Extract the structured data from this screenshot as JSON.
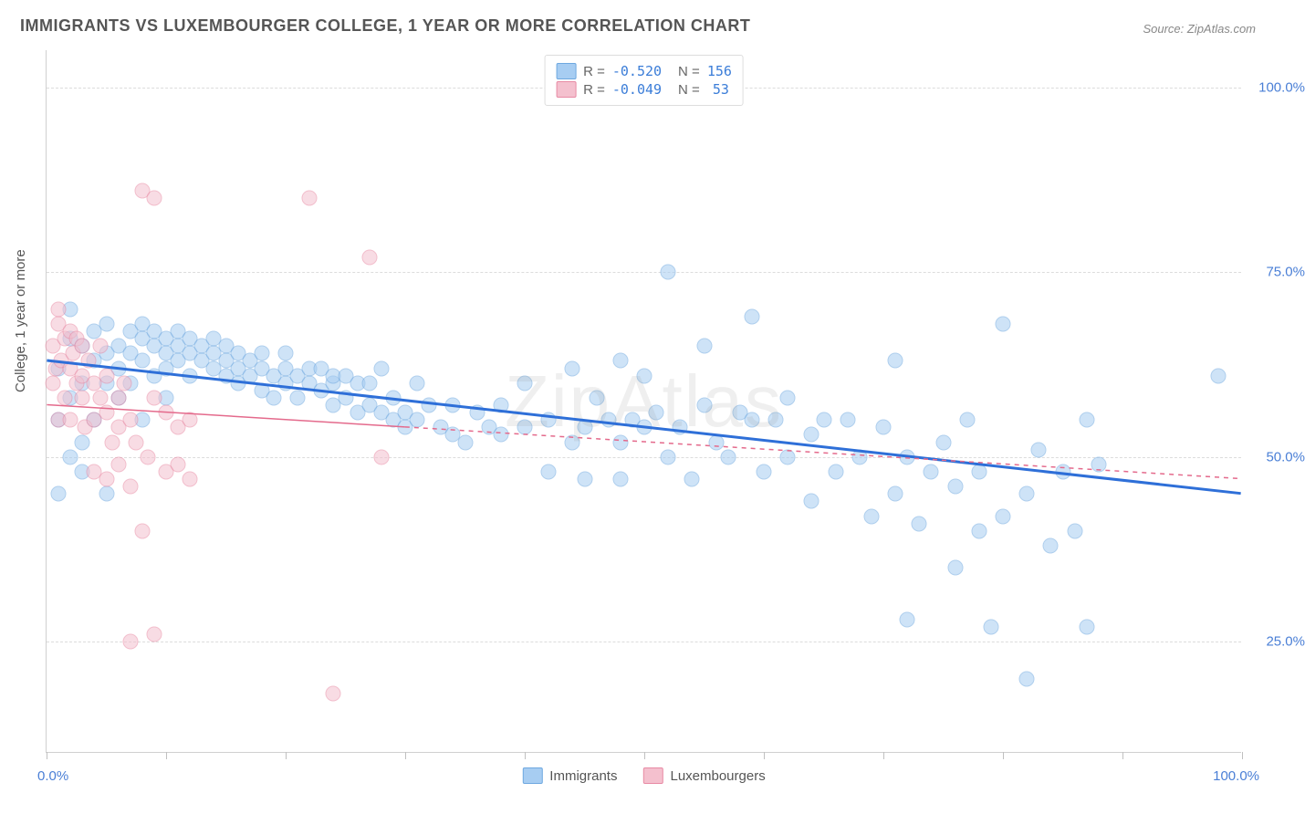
{
  "title": "IMMIGRANTS VS LUXEMBOURGER COLLEGE, 1 YEAR OR MORE CORRELATION CHART",
  "source_label": "Source: ZipAtlas.com",
  "watermark": "ZipAtlas",
  "ylabel": "College, 1 year or more",
  "xaxis": {
    "min_label": "0.0%",
    "max_label": "100.0%",
    "ticks": [
      0,
      10,
      20,
      30,
      40,
      50,
      60,
      70,
      80,
      90,
      100
    ]
  },
  "yaxis": {
    "ticks": [
      {
        "pct": 25,
        "label": "25.0%"
      },
      {
        "pct": 50,
        "label": "50.0%"
      },
      {
        "pct": 75,
        "label": "75.0%"
      },
      {
        "pct": 100,
        "label": "100.0%"
      }
    ]
  },
  "chart": {
    "type": "scatter",
    "xlim": [
      0,
      100
    ],
    "ylim": [
      10,
      105
    ],
    "background_color": "#ffffff",
    "grid_color": "#dcdcdc",
    "point_radius": 8.5,
    "point_opacity": 0.55
  },
  "series": [
    {
      "key": "immigrants",
      "label": "Immigrants",
      "color_fill": "#a7cdf2",
      "color_stroke": "#6ea8e0",
      "r": "-0.520",
      "n": "156",
      "trend": {
        "x1": 0,
        "y1": 63,
        "x2": 100,
        "y2": 45,
        "stroke": "#2e6fd8",
        "width": 3,
        "dash": ""
      },
      "points": [
        [
          1,
          55
        ],
        [
          1,
          62
        ],
        [
          1,
          45
        ],
        [
          2,
          66
        ],
        [
          2,
          50
        ],
        [
          2,
          58
        ],
        [
          2,
          70
        ],
        [
          3,
          60
        ],
        [
          3,
          65
        ],
        [
          3,
          52
        ],
        [
          3,
          48
        ],
        [
          4,
          63
        ],
        [
          4,
          67
        ],
        [
          4,
          55
        ],
        [
          5,
          64
        ],
        [
          5,
          68
        ],
        [
          5,
          60
        ],
        [
          5,
          45
        ],
        [
          6,
          65
        ],
        [
          6,
          62
        ],
        [
          6,
          58
        ],
        [
          7,
          67
        ],
        [
          7,
          64
        ],
        [
          7,
          60
        ],
        [
          8,
          66
        ],
        [
          8,
          63
        ],
        [
          8,
          68
        ],
        [
          8,
          55
        ],
        [
          9,
          65
        ],
        [
          9,
          67
        ],
        [
          9,
          61
        ],
        [
          10,
          64
        ],
        [
          10,
          66
        ],
        [
          10,
          62
        ],
        [
          10,
          58
        ],
        [
          11,
          65
        ],
        [
          11,
          63
        ],
        [
          11,
          67
        ],
        [
          12,
          64
        ],
        [
          12,
          61
        ],
        [
          12,
          66
        ],
        [
          13,
          63
        ],
        [
          13,
          65
        ],
        [
          14,
          64
        ],
        [
          14,
          62
        ],
        [
          14,
          66
        ],
        [
          15,
          63
        ],
        [
          15,
          61
        ],
        [
          15,
          65
        ],
        [
          16,
          62
        ],
        [
          16,
          60
        ],
        [
          16,
          64
        ],
        [
          17,
          61
        ],
        [
          17,
          63
        ],
        [
          18,
          62
        ],
        [
          18,
          59
        ],
        [
          18,
          64
        ],
        [
          19,
          61
        ],
        [
          19,
          58
        ],
        [
          20,
          62
        ],
        [
          20,
          60
        ],
        [
          20,
          64
        ],
        [
          21,
          61
        ],
        [
          21,
          58
        ],
        [
          22,
          62
        ],
        [
          22,
          60
        ],
        [
          23,
          59
        ],
        [
          23,
          62
        ],
        [
          24,
          60
        ],
        [
          24,
          57
        ],
        [
          24,
          61
        ],
        [
          25,
          58
        ],
        [
          25,
          61
        ],
        [
          26,
          60
        ],
        [
          26,
          56
        ],
        [
          27,
          57
        ],
        [
          27,
          60
        ],
        [
          28,
          56
        ],
        [
          28,
          62
        ],
        [
          29,
          55
        ],
        [
          29,
          58
        ],
        [
          30,
          56
        ],
        [
          30,
          54
        ],
        [
          31,
          55
        ],
        [
          31,
          60
        ],
        [
          32,
          57
        ],
        [
          33,
          54
        ],
        [
          34,
          53
        ],
        [
          34,
          57
        ],
        [
          35,
          52
        ],
        [
          36,
          56
        ],
        [
          37,
          54
        ],
        [
          38,
          53
        ],
        [
          38,
          57
        ],
        [
          40,
          54
        ],
        [
          40,
          60
        ],
        [
          42,
          55
        ],
        [
          42,
          48
        ],
        [
          44,
          52
        ],
        [
          44,
          62
        ],
        [
          45,
          54
        ],
        [
          45,
          47
        ],
        [
          46,
          58
        ],
        [
          47,
          55
        ],
        [
          48,
          52
        ],
        [
          48,
          63
        ],
        [
          48,
          47
        ],
        [
          49,
          55
        ],
        [
          50,
          54
        ],
        [
          50,
          61
        ],
        [
          51,
          56
        ],
        [
          52,
          50
        ],
        [
          52,
          75
        ],
        [
          53,
          54
        ],
        [
          54,
          47
        ],
        [
          55,
          57
        ],
        [
          55,
          65
        ],
        [
          56,
          52
        ],
        [
          57,
          50
        ],
        [
          58,
          56
        ],
        [
          59,
          55
        ],
        [
          59,
          69
        ],
        [
          60,
          48
        ],
        [
          61,
          55
        ],
        [
          62,
          50
        ],
        [
          62,
          58
        ],
        [
          64,
          53
        ],
        [
          64,
          44
        ],
        [
          65,
          55
        ],
        [
          66,
          48
        ],
        [
          67,
          55
        ],
        [
          68,
          50
        ],
        [
          69,
          42
        ],
        [
          70,
          54
        ],
        [
          71,
          45
        ],
        [
          71,
          63
        ],
        [
          72,
          50
        ],
        [
          72,
          28
        ],
        [
          73,
          41
        ],
        [
          74,
          48
        ],
        [
          75,
          52
        ],
        [
          76,
          46
        ],
        [
          76,
          35
        ],
        [
          77,
          55
        ],
        [
          78,
          48
        ],
        [
          78,
          40
        ],
        [
          79,
          27
        ],
        [
          80,
          42
        ],
        [
          80,
          68
        ],
        [
          82,
          45
        ],
        [
          82,
          20
        ],
        [
          83,
          51
        ],
        [
          84,
          38
        ],
        [
          85,
          48
        ],
        [
          86,
          40
        ],
        [
          87,
          27
        ],
        [
          87,
          55
        ],
        [
          88,
          49
        ],
        [
          98,
          61
        ]
      ]
    },
    {
      "key": "luxembourgers",
      "label": "Luxembourgers",
      "color_fill": "#f4c0ce",
      "color_stroke": "#e88aa4",
      "r": "-0.049",
      "n": "53",
      "trend": {
        "x1": 0,
        "y1": 57,
        "x2": 100,
        "y2": 47,
        "stroke": "#e46a8c",
        "width": 1.5,
        "dash": "5 5",
        "solid_until_x": 30
      },
      "points": [
        [
          0.5,
          60
        ],
        [
          0.5,
          65
        ],
        [
          0.8,
          62
        ],
        [
          1,
          68
        ],
        [
          1,
          55
        ],
        [
          1,
          70
        ],
        [
          1.2,
          63
        ],
        [
          1.5,
          66
        ],
        [
          1.5,
          58
        ],
        [
          2,
          62
        ],
        [
          2,
          67
        ],
        [
          2,
          55
        ],
        [
          2.2,
          64
        ],
        [
          2.5,
          60
        ],
        [
          2.5,
          66
        ],
        [
          3,
          61
        ],
        [
          3,
          58
        ],
        [
          3,
          65
        ],
        [
          3.2,
          54
        ],
        [
          3.5,
          63
        ],
        [
          4,
          48
        ],
        [
          4,
          60
        ],
        [
          4,
          55
        ],
        [
          4.5,
          58
        ],
        [
          4.5,
          65
        ],
        [
          5,
          47
        ],
        [
          5,
          56
        ],
        [
          5,
          61
        ],
        [
          5.5,
          52
        ],
        [
          6,
          54
        ],
        [
          6,
          58
        ],
        [
          6,
          49
        ],
        [
          6.5,
          60
        ],
        [
          7,
          46
        ],
        [
          7,
          55
        ],
        [
          7.5,
          52
        ],
        [
          7,
          25
        ],
        [
          8,
          86
        ],
        [
          8,
          40
        ],
        [
          8.5,
          50
        ],
        [
          9,
          58
        ],
        [
          9,
          85
        ],
        [
          9,
          26
        ],
        [
          10,
          56
        ],
        [
          10,
          48
        ],
        [
          11,
          49
        ],
        [
          11,
          54
        ],
        [
          12,
          47
        ],
        [
          12,
          55
        ],
        [
          22,
          85
        ],
        [
          24,
          18
        ],
        [
          27,
          77
        ],
        [
          28,
          50
        ]
      ]
    }
  ],
  "legend_bottom": [
    {
      "label": "Immigrants",
      "fill": "#a7cdf2",
      "stroke": "#6ea8e0"
    },
    {
      "label": "Luxembourgers",
      "fill": "#f4c0ce",
      "stroke": "#e88aa4"
    }
  ]
}
